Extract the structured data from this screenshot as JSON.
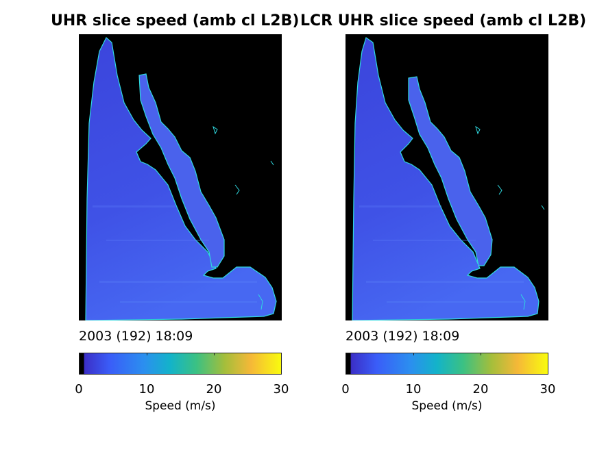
{
  "panels": [
    {
      "title": "UHR slice speed (amb cl L2B)",
      "timestamp": "2003 (192) 18:09",
      "colorbar": {
        "label": "Speed (m/s)",
        "ticks": [
          "0",
          "10",
          "20",
          "30"
        ],
        "range": [
          0,
          30
        ]
      }
    },
    {
      "title": "LCR UHR slice speed (amb cl L2B)",
      "timestamp": "2003 (192) 18:09",
      "colorbar": {
        "label": "Speed (m/s)",
        "ticks": [
          "0",
          "10",
          "20",
          "30"
        ],
        "range": [
          0,
          30
        ]
      }
    }
  ],
  "colors": {
    "land": "#000000",
    "water_low": "#3a3fd6",
    "water_mid": "#4860f0",
    "coast_edge": "#2fd9e0"
  },
  "colormap": [
    "#000000",
    "#3b2fc7",
    "#3a5df8",
    "#2b8fef",
    "#13b3c9",
    "#3bc183",
    "#a4be3b",
    "#f5b838",
    "#f9fb0e"
  ]
}
